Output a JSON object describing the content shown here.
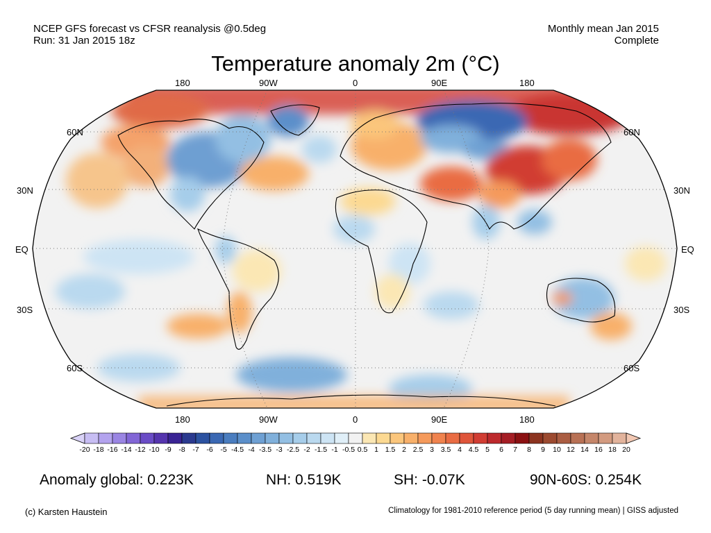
{
  "header": {
    "left_line1": "NCEP GFS forecast vs CFSR reanalysis @0.5deg",
    "left_line2": "Run: 31 Jan 2015 18z",
    "right_line1": "Monthly mean Jan 2015",
    "right_line2": "Complete"
  },
  "title": "Temperature anomaly 2m (°C)",
  "map": {
    "projection": "Robinson",
    "lon_labels_top": [
      "180",
      "90W",
      "0",
      "90E",
      "180"
    ],
    "lon_labels_bottom": [
      "180",
      "90W",
      "0",
      "90E",
      "180"
    ],
    "lat_labels_left": [
      "60N",
      "30N",
      "EQ",
      "30S",
      "60S"
    ],
    "lat_labels_right": [
      "60N",
      "30N",
      "EQ",
      "30S",
      "60S"
    ],
    "ocean_color": "#f2f2f2",
    "regions": [
      {
        "name": "arctic",
        "anomaly": "warm-strong"
      },
      {
        "name": "siberia",
        "anomaly": "cold"
      },
      {
        "name": "north-america-east",
        "anomaly": "cold"
      },
      {
        "name": "central-asia",
        "anomaly": "warm-strong"
      },
      {
        "name": "europe",
        "anomaly": "warm"
      },
      {
        "name": "australia",
        "anomaly": "cold"
      },
      {
        "name": "antarctic-ocean",
        "anomaly": "cold"
      }
    ]
  },
  "colorbar": {
    "ticks": [
      "-20",
      "-18",
      "-16",
      "-14",
      "-12",
      "-10",
      "-9",
      "-8",
      "-7",
      "-6",
      "-5",
      "-4.5",
      "-4",
      "-3.5",
      "-3",
      "-2.5",
      "-2",
      "-1.5",
      "-1",
      "-0.5",
      "0.5",
      "1",
      "1.5",
      "2",
      "2.5",
      "3",
      "3.5",
      "4",
      "4.5",
      "5",
      "6",
      "7",
      "8",
      "9",
      "10",
      "12",
      "14",
      "16",
      "18",
      "20"
    ],
    "colors": [
      "#c7bdf3",
      "#b3a3ee",
      "#9a85e3",
      "#8266d6",
      "#6a4cc6",
      "#5535ae",
      "#3a2494",
      "#2b3a8f",
      "#2c52a0",
      "#3a68b3",
      "#4a7dbf",
      "#5b8fca",
      "#6ea0d3",
      "#80b0db",
      "#93bfe3",
      "#a6cdea",
      "#bad9ef",
      "#cde4f4",
      "#e0eff8",
      "#f2f2f2",
      "#fbe7b4",
      "#fcd992",
      "#fbc67c",
      "#f8b06a",
      "#f59a5b",
      "#f0834e",
      "#e96c43",
      "#df553a",
      "#d13d33",
      "#bd2a2d",
      "#a51e25",
      "#8b1112",
      "#8c3420",
      "#9c4a30",
      "#aa5d42",
      "#b87155",
      "#c5866a",
      "#d39b80",
      "#e2b39c"
    ],
    "low_color": "#d9d2f7",
    "high_color": "#f2c8b3"
  },
  "stats": {
    "global": "Anomaly global: 0.223K",
    "nh": "NH: 0.519K",
    "sh": "SH: -0.07K",
    "polar": "90N-60S: 0.254K"
  },
  "footer": {
    "credit": "(c) Karsten Haustein",
    "note": "Climatology for 1981-2010 reference period (5 day running mean) | GISS adjusted"
  }
}
